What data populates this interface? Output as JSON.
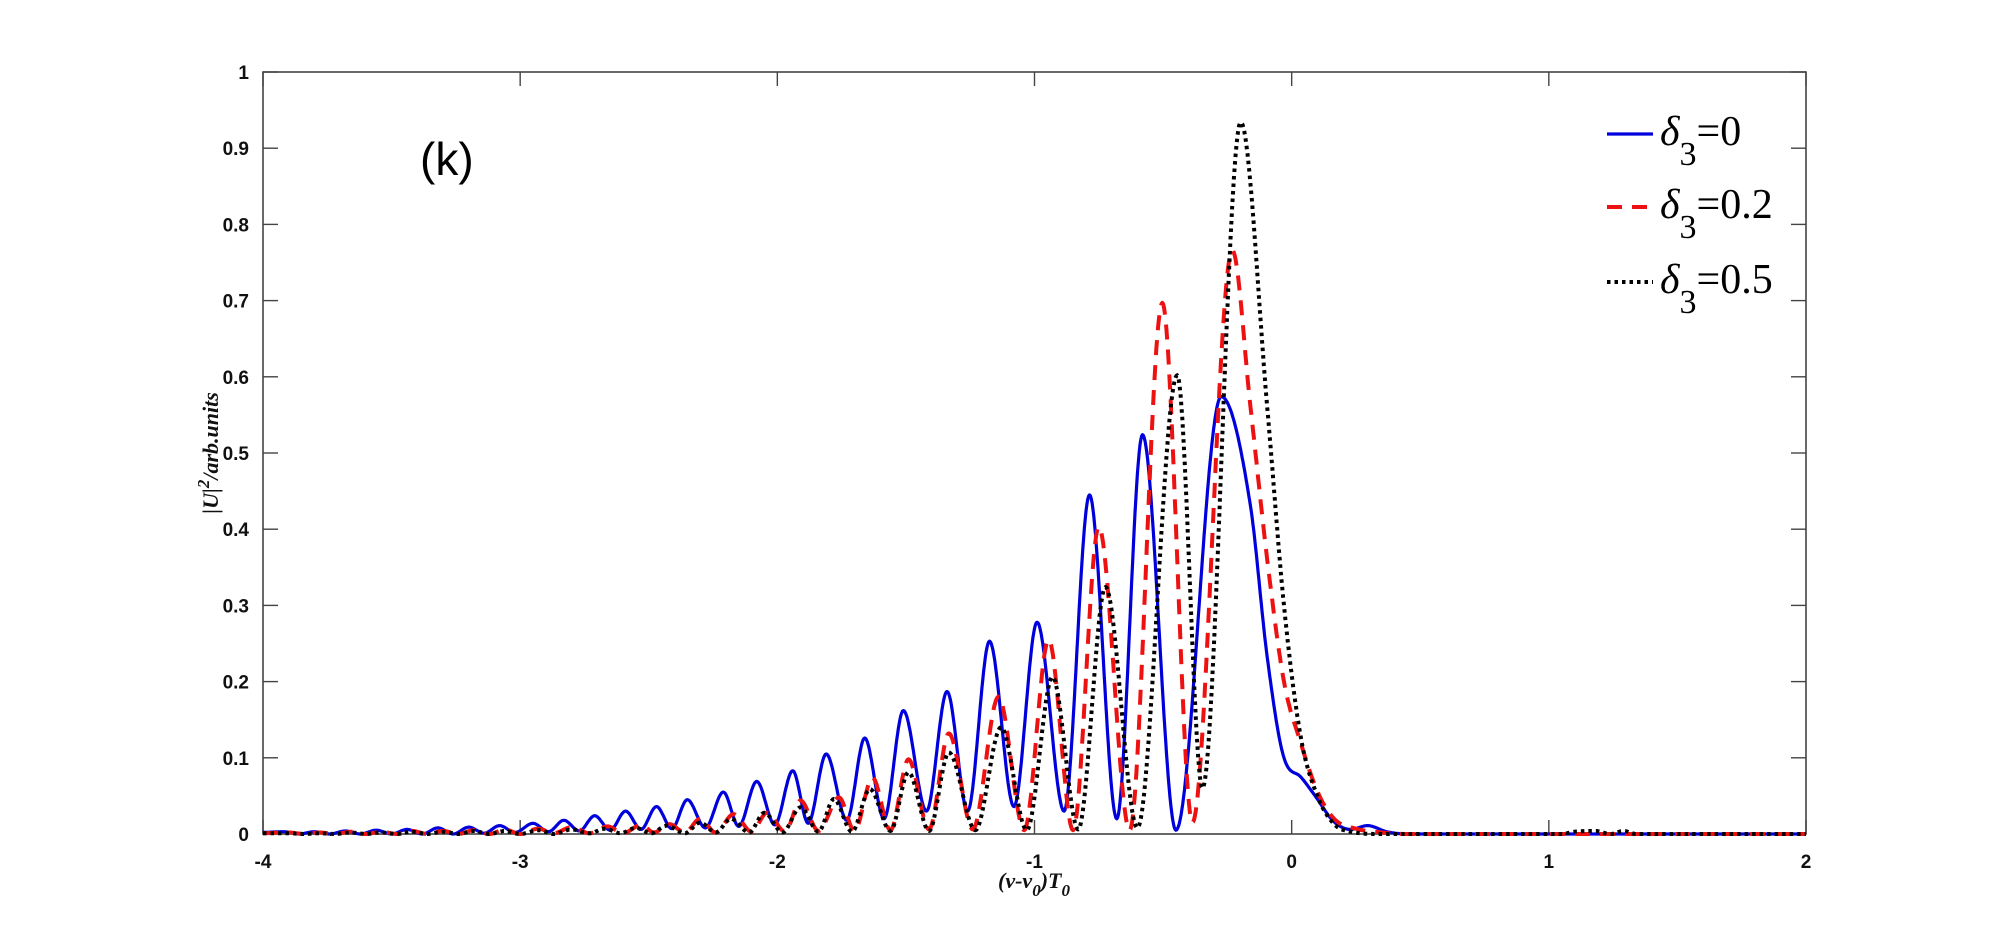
{
  "chart_data": {
    "type": "line",
    "title": "",
    "panel_label": "(k)",
    "xlabel": {
      "main": "(v-v",
      "sub1": "0",
      "mid": ")T",
      "sub2": "0"
    },
    "ylabel": {
      "main": "|U|",
      "sup": "2",
      "rest": "/arb.units"
    },
    "xlim": [
      -4,
      2
    ],
    "ylim": [
      0,
      1
    ],
    "xticks": [
      -4,
      -3,
      -2,
      -1,
      0,
      1,
      2
    ],
    "yticks": [
      0,
      0.1,
      0.2,
      0.3,
      0.4,
      0.5,
      0.6,
      0.7,
      0.8,
      0.9,
      1
    ],
    "xtick_labels": [
      "-4",
      "-3",
      "-2",
      "-1",
      "0",
      "1",
      "2"
    ],
    "ytick_labels": [
      "0",
      "0.1",
      "0.2",
      "0.3",
      "0.4",
      "0.5",
      "0.6",
      "0.7",
      "0.8",
      "0.9",
      "1"
    ],
    "grid": false,
    "legend_position": "top-right",
    "series": [
      {
        "name": "δ3=0",
        "legend": {
          "symbol": "δ",
          "sub": "3",
          "value": "=0"
        },
        "color": "#0000dd",
        "style": "solid",
        "points": [
          [
            -4,
            0.002
          ],
          [
            -3.92,
            0.003
          ],
          [
            -3.86,
            0
          ],
          [
            -3.8,
            0.003
          ],
          [
            -3.74,
            0
          ],
          [
            -3.68,
            0.004
          ],
          [
            -3.62,
            0
          ],
          [
            -3.56,
            0.005
          ],
          [
            -3.5,
            0
          ],
          [
            -3.44,
            0.006
          ],
          [
            -3.38,
            0
          ],
          [
            -3.32,
            0.008
          ],
          [
            -3.26,
            0
          ],
          [
            -3.2,
            0.009
          ],
          [
            -3.14,
            0.001
          ],
          [
            -3.08,
            0.011
          ],
          [
            -3.02,
            0.002
          ],
          [
            -2.95,
            0.014
          ],
          [
            -2.89,
            0.003
          ],
          [
            -2.83,
            0.018
          ],
          [
            -2.77,
            0.004
          ],
          [
            -2.71,
            0.024
          ],
          [
            -2.65,
            0.005
          ],
          [
            -2.59,
            0.03
          ],
          [
            -2.53,
            0.006
          ],
          [
            -2.47,
            0.036
          ],
          [
            -2.41,
            0.007
          ],
          [
            -2.35,
            0.045
          ],
          [
            -2.28,
            0.008
          ],
          [
            -2.21,
            0.055
          ],
          [
            -2.15,
            0.01
          ],
          [
            -2.08,
            0.069
          ],
          [
            -2.01,
            0.012
          ],
          [
            -1.94,
            0.083
          ],
          [
            -1.88,
            0.014
          ],
          [
            -1.81,
            0.105
          ],
          [
            -1.73,
            0.018
          ],
          [
            -1.66,
            0.126
          ],
          [
            -1.585,
            0.02
          ],
          [
            -1.51,
            0.162
          ],
          [
            -1.42,
            0.03
          ],
          [
            -1.34,
            0.187
          ],
          [
            -1.26,
            0.03
          ],
          [
            -1.175,
            0.253
          ],
          [
            -1.08,
            0.036
          ],
          [
            -0.99,
            0.278
          ],
          [
            -0.885,
            0.03
          ],
          [
            -0.786,
            0.445
          ],
          [
            -0.68,
            0.02
          ],
          [
            -0.58,
            0.524
          ],
          [
            -0.45,
            0.005
          ],
          [
            -0.274,
            0.574
          ],
          [
            -0.16,
            0.43
          ],
          [
            -0.095,
            0.232
          ],
          [
            -0.03,
            0.1
          ],
          [
            0.035,
            0.075
          ],
          [
            0.087,
            0.052
          ],
          [
            0.165,
            0.016
          ],
          [
            0.23,
            0.006
          ],
          [
            0.295,
            0.011
          ],
          [
            0.37,
            0.003
          ],
          [
            0.45,
            0
          ],
          [
            2,
            0
          ]
        ]
      },
      {
        "name": "δ3=0.2",
        "legend": {
          "symbol": "δ",
          "sub": "3",
          "value": "=0.2"
        },
        "color": "#ee1111",
        "style": "dashed",
        "points": [
          [
            -4,
            0.001
          ],
          [
            -3.9,
            0.002
          ],
          [
            -3.84,
            0
          ],
          [
            -3.78,
            0.002
          ],
          [
            -3.72,
            0
          ],
          [
            -3.66,
            0.003
          ],
          [
            -3.6,
            0
          ],
          [
            -3.54,
            0.003
          ],
          [
            -3.48,
            0
          ],
          [
            -3.42,
            0.004
          ],
          [
            -3.36,
            0
          ],
          [
            -3.3,
            0.004
          ],
          [
            -3.24,
            0
          ],
          [
            -3.18,
            0.005
          ],
          [
            -3.12,
            0
          ],
          [
            -3.06,
            0.006
          ],
          [
            -3.0,
            0
          ],
          [
            -2.93,
            0.007
          ],
          [
            -2.87,
            0.001
          ],
          [
            -2.8,
            0.009
          ],
          [
            -2.73,
            0.001
          ],
          [
            -2.66,
            0.01
          ],
          [
            -2.6,
            0.001
          ],
          [
            -2.53,
            0.012
          ],
          [
            -2.48,
            0.002
          ],
          [
            -2.42,
            0.013
          ],
          [
            -2.36,
            0.002
          ],
          [
            -2.3,
            0.02
          ],
          [
            -2.24,
            0.002
          ],
          [
            -2.17,
            0.026
          ],
          [
            -2.1,
            0.003
          ],
          [
            -2.04,
            0.028
          ],
          [
            -1.97,
            0.003
          ],
          [
            -1.91,
            0.044
          ],
          [
            -1.84,
            0.004
          ],
          [
            -1.76,
            0.048
          ],
          [
            -1.7,
            0.004
          ],
          [
            -1.63,
            0.074
          ],
          [
            -1.56,
            0.005
          ],
          [
            -1.49,
            0.098
          ],
          [
            -1.41,
            0.006
          ],
          [
            -1.333,
            0.132
          ],
          [
            -1.24,
            0.006
          ],
          [
            -1.14,
            0.18
          ],
          [
            -1.04,
            0.005
          ],
          [
            -0.945,
            0.255
          ],
          [
            -0.85,
            0.005
          ],
          [
            -0.75,
            0.403
          ],
          [
            -0.63,
            0.005
          ],
          [
            -0.503,
            0.697
          ],
          [
            -0.386,
            0.015
          ],
          [
            -0.231,
            0.766
          ],
          [
            -0.16,
            0.56
          ],
          [
            -0.095,
            0.36
          ],
          [
            -0.03,
            0.2
          ],
          [
            0.035,
            0.12
          ],
          [
            0.1,
            0.056
          ],
          [
            0.165,
            0.02
          ],
          [
            0.25,
            0.007
          ],
          [
            0.35,
            0.002
          ],
          [
            0.45,
            0
          ],
          [
            2,
            0
          ]
        ]
      },
      {
        "name": "δ3=0.5",
        "legend": {
          "symbol": "δ",
          "sub": "3",
          "value": "=0.5"
        },
        "color": "#000000",
        "style": "dotted",
        "points": [
          [
            -4,
            0.001
          ],
          [
            -3.9,
            0.001
          ],
          [
            -3.84,
            0
          ],
          [
            -3.78,
            0.001
          ],
          [
            -3.72,
            0
          ],
          [
            -3.66,
            0.002
          ],
          [
            -3.6,
            0
          ],
          [
            -3.54,
            0.002
          ],
          [
            -3.48,
            0
          ],
          [
            -3.42,
            0.003
          ],
          [
            -3.36,
            0
          ],
          [
            -3.3,
            0.003
          ],
          [
            -3.24,
            0
          ],
          [
            -3.18,
            0.004
          ],
          [
            -3.12,
            0
          ],
          [
            -3.06,
            0.004
          ],
          [
            -3.0,
            0
          ],
          [
            -2.93,
            0.005
          ],
          [
            -2.87,
            0
          ],
          [
            -2.8,
            0.006
          ],
          [
            -2.73,
            0.001
          ],
          [
            -2.67,
            0.007
          ],
          [
            -2.61,
            0.001
          ],
          [
            -2.55,
            0.008
          ],
          [
            -2.49,
            0.001
          ],
          [
            -2.43,
            0.011
          ],
          [
            -2.36,
            0.001
          ],
          [
            -2.3,
            0.015
          ],
          [
            -2.24,
            0.002
          ],
          [
            -2.18,
            0.02
          ],
          [
            -2.11,
            0.002
          ],
          [
            -2.05,
            0.028
          ],
          [
            -1.98,
            0.002
          ],
          [
            -1.91,
            0.035
          ],
          [
            -1.84,
            0.003
          ],
          [
            -1.78,
            0.046
          ],
          [
            -1.71,
            0.003
          ],
          [
            -1.64,
            0.059
          ],
          [
            -1.56,
            0.004
          ],
          [
            -1.49,
            0.081
          ],
          [
            -1.41,
            0.004
          ],
          [
            -1.333,
            0.107
          ],
          [
            -1.23,
            0.005
          ],
          [
            -1.13,
            0.14
          ],
          [
            -1.03,
            0.005
          ],
          [
            -0.93,
            0.206
          ],
          [
            -0.83,
            0.006
          ],
          [
            -0.724,
            0.324
          ],
          [
            -0.6,
            0.008
          ],
          [
            -0.445,
            0.602
          ],
          [
            -0.347,
            0.06
          ],
          [
            -0.198,
            0.934
          ],
          [
            -0.095,
            0.56
          ],
          [
            -0.03,
            0.3
          ],
          [
            0.035,
            0.128
          ],
          [
            0.1,
            0.05
          ],
          [
            0.165,
            0.013
          ],
          [
            0.23,
            0.003
          ],
          [
            0.35,
            0
          ],
          [
            1.05,
            0
          ],
          [
            1.1,
            0.003
          ],
          [
            1.18,
            0.004
          ],
          [
            1.24,
            0
          ],
          [
            1.29,
            0.004
          ],
          [
            1.34,
            0
          ],
          [
            2,
            0
          ]
        ]
      }
    ]
  }
}
